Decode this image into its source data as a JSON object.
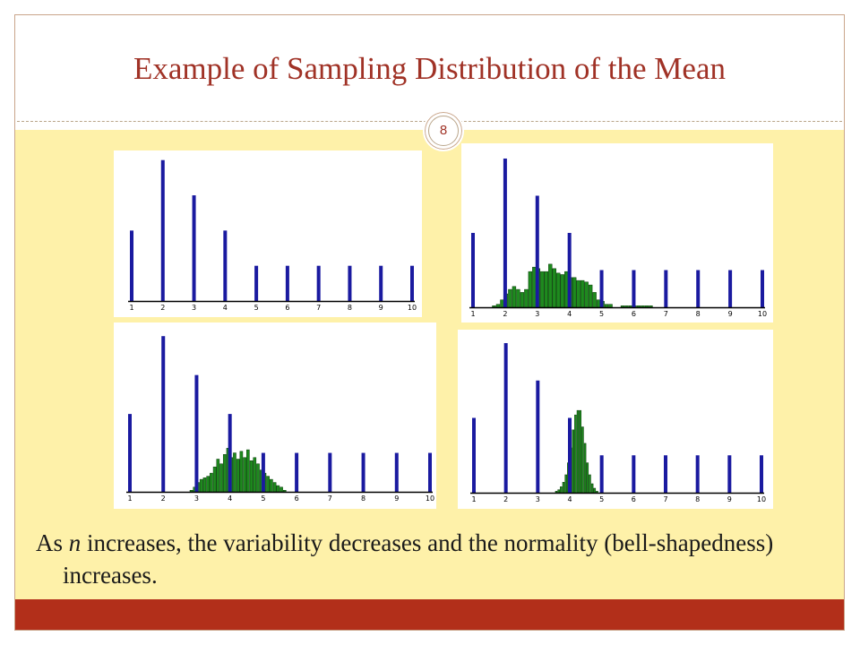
{
  "slide": {
    "title": "Example of Sampling Distribution of the Mean",
    "number": "8",
    "caption_prefix": "As ",
    "caption_var": "n",
    "caption_rest": " increases, the variability decreases and the normality (bell-shapedness) increases."
  },
  "colors": {
    "title": "#a03226",
    "population_bar": "#1a1aa0",
    "sample_bar": "#1e8a1e",
    "content_bg": "#fef1a9",
    "bottom_bar": "#b22f1a"
  },
  "chart_data": [
    {
      "type": "bar",
      "panel": "top-left",
      "categories": [
        "1",
        "2",
        "3",
        "4",
        "5",
        "6",
        "7",
        "8",
        "9",
        "10"
      ],
      "population": [
        0.5,
        1.0,
        0.75,
        0.5,
        0.25,
        0.25,
        0.25,
        0.25,
        0.25,
        0.25
      ],
      "sampling": [],
      "xlim": [
        1,
        10
      ],
      "ylim": [
        0,
        1.03
      ]
    },
    {
      "type": "bar",
      "panel": "top-right",
      "categories": [
        "1",
        "2",
        "3",
        "4",
        "5",
        "6",
        "7",
        "8",
        "9",
        "10"
      ],
      "population": [
        0.5,
        1.0,
        0.75,
        0.5,
        0.25,
        0.25,
        0.25,
        0.25,
        0.25,
        0.25
      ],
      "sampling": {
        "start": 1.6,
        "step": 0.125,
        "heights": [
          0.01,
          0.02,
          0.05,
          0.09,
          0.12,
          0.14,
          0.12,
          0.1,
          0.12,
          0.24,
          0.27,
          0.26,
          0.24,
          0.24,
          0.29,
          0.26,
          0.23,
          0.22,
          0.24,
          0.2,
          0.2,
          0.18,
          0.18,
          0.17,
          0.15,
          0.1,
          0.05,
          0.04,
          0.02,
          0.02,
          0,
          0,
          0.01,
          0.01,
          0.01,
          0.01,
          0.01,
          0.01,
          0.01,
          0.01
        ]
      },
      "xlim": [
        1,
        10
      ],
      "ylim": [
        0,
        1.03
      ]
    },
    {
      "type": "bar",
      "panel": "bottom-left",
      "categories": [
        "1",
        "2",
        "3",
        "4",
        "5",
        "6",
        "7",
        "8",
        "9",
        "10"
      ],
      "population": [
        0.5,
        1.0,
        0.75,
        0.5,
        0.25,
        0.25,
        0.25,
        0.25,
        0.25,
        0.25
      ],
      "sampling": {
        "start": 2.8,
        "step": 0.1,
        "heights": [
          0.01,
          0.03,
          0.06,
          0.08,
          0.09,
          0.1,
          0.12,
          0.16,
          0.21,
          0.18,
          0.24,
          0.28,
          0.22,
          0.25,
          0.21,
          0.26,
          0.22,
          0.27,
          0.2,
          0.22,
          0.18,
          0.14,
          0.12,
          0.1,
          0.08,
          0.06,
          0.04,
          0.03,
          0.01
        ]
      },
      "xlim": [
        1,
        10
      ],
      "ylim": [
        0,
        1.03
      ]
    },
    {
      "type": "bar",
      "panel": "bottom-right",
      "categories": [
        "1",
        "2",
        "3",
        "4",
        "5",
        "6",
        "7",
        "8",
        "9",
        "10"
      ],
      "population": [
        0.5,
        1.0,
        0.75,
        0.5,
        0.25,
        0.25,
        0.25,
        0.25,
        0.25,
        0.25
      ],
      "sampling": {
        "start": 3.55,
        "step": 0.075,
        "heights": [
          0.01,
          0.02,
          0.04,
          0.07,
          0.12,
          0.2,
          0.3,
          0.42,
          0.52,
          0.55,
          0.55,
          0.44,
          0.33,
          0.2,
          0.12,
          0.06,
          0.03,
          0.01
        ]
      },
      "xlim": [
        1,
        10
      ],
      "ylim": [
        0,
        1.03
      ]
    }
  ]
}
